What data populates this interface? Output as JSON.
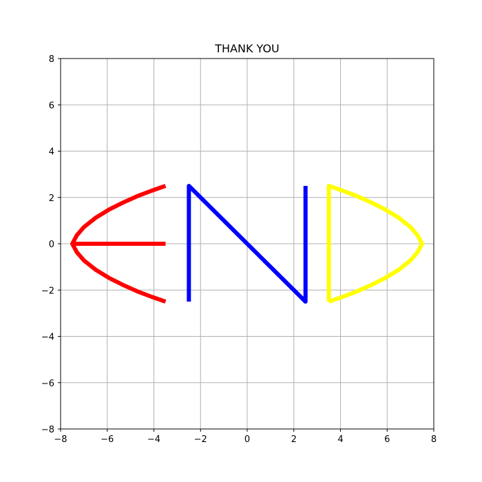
{
  "chart_data": {
    "type": "line",
    "title": "THANK YOU",
    "xlabel": "",
    "ylabel": "",
    "xlim": [
      -8,
      8
    ],
    "ylim": [
      -8,
      8
    ],
    "xticks": [
      -8,
      -6,
      -4,
      -2,
      0,
      2,
      4,
      6,
      8
    ],
    "yticks": [
      -8,
      -6,
      -4,
      -2,
      0,
      2,
      4,
      6,
      8
    ],
    "xtick_labels": [
      "−8",
      "−6",
      "−4",
      "−2",
      "0",
      "2",
      "4",
      "6",
      "8"
    ],
    "ytick_labels": [
      "−8",
      "−6",
      "−4",
      "−2",
      "0",
      "2",
      "4",
      "6",
      "8"
    ],
    "grid": true,
    "series": [
      {
        "color": "#ff0000",
        "x": [
          -3.5,
          -4.1,
          -4.7,
          -5.3,
          -5.9,
          -6.5,
          -7.0,
          -7.3,
          -7.5,
          -7.3,
          -7.0,
          -6.5,
          -5.9,
          -5.3,
          -4.7,
          -4.1,
          -3.5
        ],
        "y": [
          2.5,
          2.29,
          2.06,
          1.79,
          1.49,
          1.12,
          0.72,
          0.37,
          0.0,
          -0.37,
          -0.72,
          -1.12,
          -1.49,
          -1.79,
          -2.06,
          -2.29,
          -2.5
        ]
      },
      {
        "color": "#ff0000",
        "x": [
          -7.5,
          -3.5
        ],
        "y": [
          0,
          0
        ]
      },
      {
        "color": "#0000ff",
        "x": [
          -2.5,
          -2.5,
          2.5,
          2.5
        ],
        "y": [
          -2.5,
          2.5,
          -2.5,
          2.5
        ]
      },
      {
        "color": "#ffff00",
        "x": [
          3.5,
          3.5,
          4.1,
          4.7,
          5.3,
          5.9,
          6.5,
          7.0,
          7.3,
          7.5,
          7.3,
          7.0,
          6.5,
          5.9,
          5.3,
          4.7,
          4.1,
          3.5
        ],
        "y": [
          -2.5,
          2.5,
          2.29,
          2.06,
          1.79,
          1.49,
          1.12,
          0.72,
          0.37,
          0.0,
          -0.37,
          -0.72,
          -1.12,
          -1.49,
          -1.79,
          -2.06,
          -2.29,
          -2.5
        ]
      }
    ]
  }
}
